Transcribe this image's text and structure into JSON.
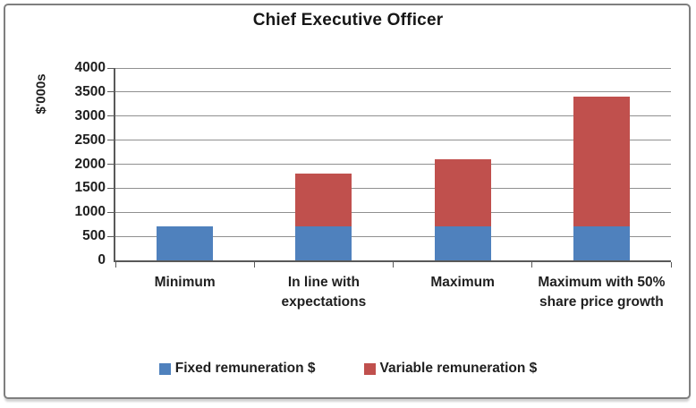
{
  "chart_data": {
    "type": "bar",
    "stacked": true,
    "title": "Chief Executive Officer",
    "ylabel": "$'000s",
    "xlabel": "",
    "categories": [
      "Minimum",
      "In line with expectations",
      "Maximum",
      "Maximum with 50% share price growth"
    ],
    "series": [
      {
        "name": "Fixed remuneration $",
        "color": "#4F81BD",
        "values": [
          700,
          700,
          700,
          700
        ]
      },
      {
        "name": "Variable remuneration $",
        "color": "#C0504D",
        "values": [
          0,
          1100,
          1400,
          2700
        ]
      }
    ],
    "totals": [
      700,
      1800,
      2100,
      3400
    ],
    "ylim": [
      0,
      4000
    ],
    "ytick_step": 500,
    "yticks": [
      0,
      500,
      1000,
      1500,
      2000,
      2500,
      3000,
      3500,
      4000
    ],
    "grid": true,
    "legend_position": "bottom"
  },
  "colors": {
    "fixed_series": "#4F81BD",
    "variable_series": "#C0504D",
    "gridline": "#909090",
    "axis": "#595959",
    "text": "#1f1f1f",
    "frame_border": "#7f7f7f",
    "background": "#ffffff"
  }
}
